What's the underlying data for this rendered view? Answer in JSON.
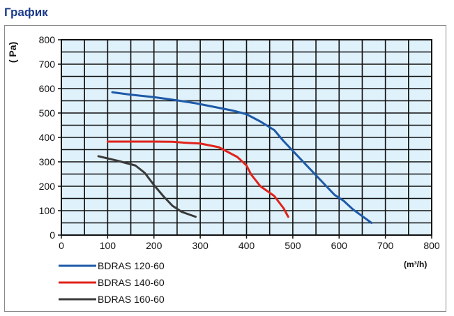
{
  "header": {
    "title": "График"
  },
  "chart_data": {
    "type": "line",
    "ylabel": "( Pa)",
    "xlabel": "(m³/h)",
    "xlim": [
      0,
      800
    ],
    "ylim": [
      0,
      800
    ],
    "xticks": [
      "0",
      "100",
      "200",
      "300",
      "400",
      "500",
      "600",
      "700",
      "800"
    ],
    "yticks": [
      "0",
      "100",
      "200",
      "300",
      "400",
      "500",
      "600",
      "700",
      "800"
    ],
    "grid": true,
    "plot_background": "#dff1fb",
    "legend_position": "bottom-left",
    "series": [
      {
        "name": "BDRAS 120-60",
        "color": "#1d5aa8",
        "x": [
          110,
          150,
          200,
          250,
          290,
          330,
          370,
          400,
          430,
          460,
          480,
          500,
          530,
          560,
          590,
          610,
          630,
          670
        ],
        "y": [
          585,
          575,
          565,
          552,
          540,
          525,
          510,
          495,
          465,
          430,
          385,
          345,
          285,
          225,
          165,
          140,
          105,
          50
        ]
      },
      {
        "name": "BDRAS 140-60",
        "color": "#e0231b",
        "x": [
          100,
          150,
          200,
          240,
          270,
          300,
          340,
          360,
          380,
          400,
          410,
          430,
          460,
          480,
          490
        ],
        "y": [
          383,
          383,
          383,
          382,
          378,
          375,
          360,
          340,
          320,
          285,
          248,
          200,
          160,
          110,
          75
        ]
      },
      {
        "name": "BDRAS 160-60",
        "color": "#3a3a3a",
        "x": [
          80,
          120,
          160,
          180,
          200,
          220,
          240,
          260,
          290
        ],
        "y": [
          323,
          305,
          285,
          255,
          205,
          160,
          120,
          95,
          75
        ]
      }
    ]
  }
}
